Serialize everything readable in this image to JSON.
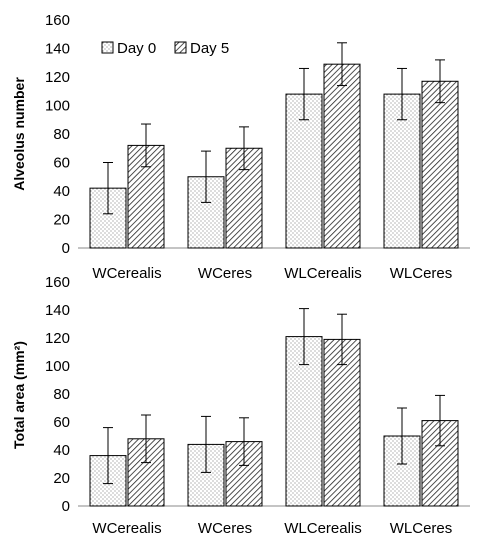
{
  "chart_data": [
    {
      "type": "bar",
      "categories": [
        "WCerealis",
        "WCeres",
        "WLCerealis",
        "WLCeres"
      ],
      "series": [
        {
          "name": "Day 0",
          "values": [
            42,
            50,
            108,
            108
          ],
          "errors": [
            18,
            18,
            18,
            18
          ],
          "pattern": "dots"
        },
        {
          "name": "Day 5",
          "values": [
            72,
            70,
            129,
            117
          ],
          "errors": [
            15,
            15,
            15,
            15
          ],
          "pattern": "diagonal"
        }
      ],
      "ylabel": "Alveolus number",
      "ylim": [
        0,
        160
      ],
      "yticks": [
        0,
        20,
        40,
        60,
        80,
        100,
        120,
        140,
        160
      ],
      "legend": "top-left",
      "grid": false
    },
    {
      "type": "bar",
      "categories": [
        "WCerealis",
        "WCeres",
        "WLCerealis",
        "WLCeres"
      ],
      "series": [
        {
          "name": "Day 0",
          "values": [
            36,
            44,
            121,
            50
          ],
          "errors": [
            20,
            20,
            20,
            20
          ],
          "pattern": "dots"
        },
        {
          "name": "Day 5",
          "values": [
            48,
            46,
            119,
            61
          ],
          "errors": [
            17,
            17,
            18,
            18
          ],
          "pattern": "diagonal"
        }
      ],
      "ylabel": "Total area (mm²)",
      "ylim": [
        0,
        160
      ],
      "yticks": [
        0,
        20,
        40,
        60,
        80,
        100,
        120,
        140,
        160
      ],
      "grid": false
    }
  ]
}
